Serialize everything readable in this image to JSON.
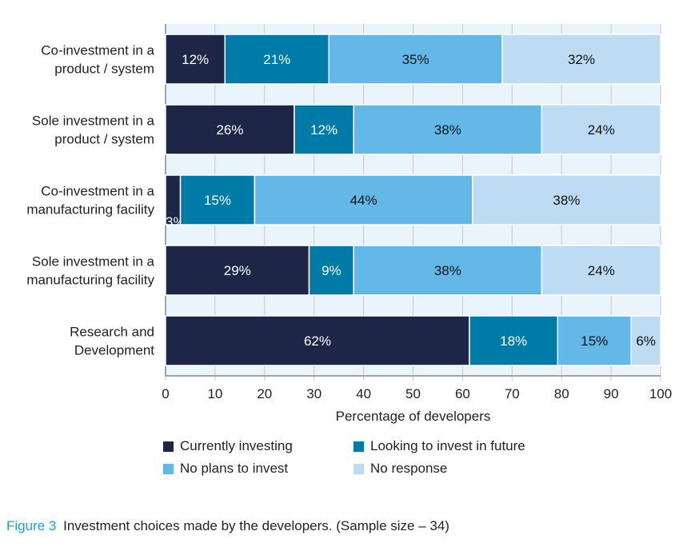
{
  "chart_data": {
    "type": "bar",
    "orientation": "horizontal",
    "stacked": true,
    "categories": [
      [
        "Co-investment in a",
        "product / system"
      ],
      [
        "Sole investment in a",
        "product / system"
      ],
      [
        "Co-investment in a",
        "manufacturing facility"
      ],
      [
        "Sole investment in a",
        "manufacturing facility"
      ],
      [
        "Research and",
        "Development"
      ]
    ],
    "series": [
      {
        "name": "Currently investing",
        "color": "#1e2647",
        "values": [
          12,
          26,
          3,
          29,
          62
        ]
      },
      {
        "name": "Looking to invest in future",
        "color": "#007ba7",
        "values": [
          21,
          12,
          15,
          9,
          18
        ]
      },
      {
        "name": "No plans to invest",
        "color": "#63b8e7",
        "values": [
          35,
          38,
          44,
          38,
          15
        ]
      },
      {
        "name": "No response",
        "color": "#bddcf4",
        "values": [
          32,
          24,
          38,
          24,
          6
        ]
      }
    ],
    "xlabel": "Percentage of developers",
    "xlim": [
      0,
      100
    ],
    "xticks": [
      0,
      10,
      20,
      30,
      40,
      50,
      60,
      70,
      80,
      90,
      100
    ],
    "grid": true,
    "legend": "bottom"
  },
  "caption": {
    "label": "Figure 3",
    "text": "Investment choices made by the developers. (Sample size – 34)"
  }
}
